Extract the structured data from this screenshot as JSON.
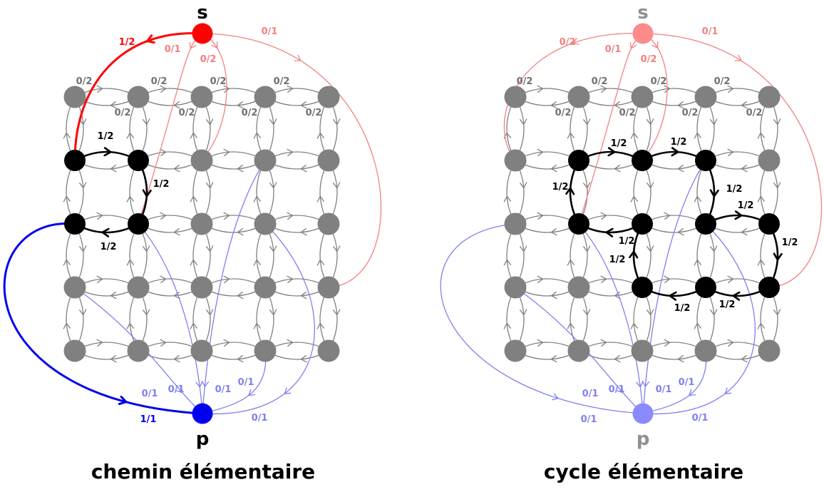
{
  "captions": {
    "left": "chemin élémentaire",
    "right": "cycle élémentaire"
  },
  "colors": {
    "grid_node": "#808080",
    "grid_edge": "#808080",
    "active": "#000000",
    "source_active": "#ff0000",
    "source_faded": "#ff8a8a",
    "source_edge_faded": "#f28080",
    "sink_active": "#0000ee",
    "sink_faded": "#8a8aff",
    "sink_edge_faded": "#7f7ff0",
    "label_gray": "#707070"
  },
  "grid": {
    "cols": 5,
    "rows": 5,
    "edge_label": "0/2"
  },
  "panels": [
    {
      "id": "chemin",
      "source": {
        "label": "s",
        "state": "active"
      },
      "sink": {
        "label": "p",
        "state": "active"
      },
      "grid_labels": [
        "0/2",
        "0/2",
        "0/2",
        "0/2",
        "0/2",
        "0/2",
        "0/2",
        "0/2"
      ],
      "black_nodes": [
        [
          0,
          1
        ],
        [
          1,
          1
        ],
        [
          0,
          2
        ],
        [
          1,
          2
        ]
      ],
      "flow_labels": [
        "1/2",
        "1/2",
        "1/2"
      ],
      "source_labels": [
        "1/2",
        "0/1",
        "0/2",
        "0/1"
      ],
      "sink_labels": [
        "1/1",
        "0/1",
        "0/1",
        "0/1",
        "0/1",
        "0/1"
      ]
    },
    {
      "id": "cycle",
      "source": {
        "label": "s",
        "state": "faded"
      },
      "sink": {
        "label": "p",
        "state": "faded"
      },
      "grid_labels": [
        "0/2",
        "0/2",
        "0/2",
        "0/2",
        "0/2",
        "0/2",
        "0/2",
        "0/2"
      ],
      "black_nodes": [
        [
          1,
          1
        ],
        [
          2,
          1
        ],
        [
          3,
          1
        ],
        [
          1,
          2
        ],
        [
          2,
          2
        ],
        [
          3,
          2
        ],
        [
          4,
          2
        ],
        [
          2,
          3
        ],
        [
          3,
          3
        ],
        [
          4,
          3
        ]
      ],
      "flow_labels": [
        "1/2",
        "1/2",
        "1/2",
        "1/2",
        "1/2",
        "1/2",
        "1/2",
        "1/2",
        "1/2",
        "1/2"
      ],
      "source_labels": [
        "0/2",
        "0/1",
        "0/2",
        "0/1"
      ],
      "sink_labels": [
        "0/1",
        "0/1",
        "0/1",
        "0/1",
        "0/1",
        "0/1"
      ]
    }
  ]
}
